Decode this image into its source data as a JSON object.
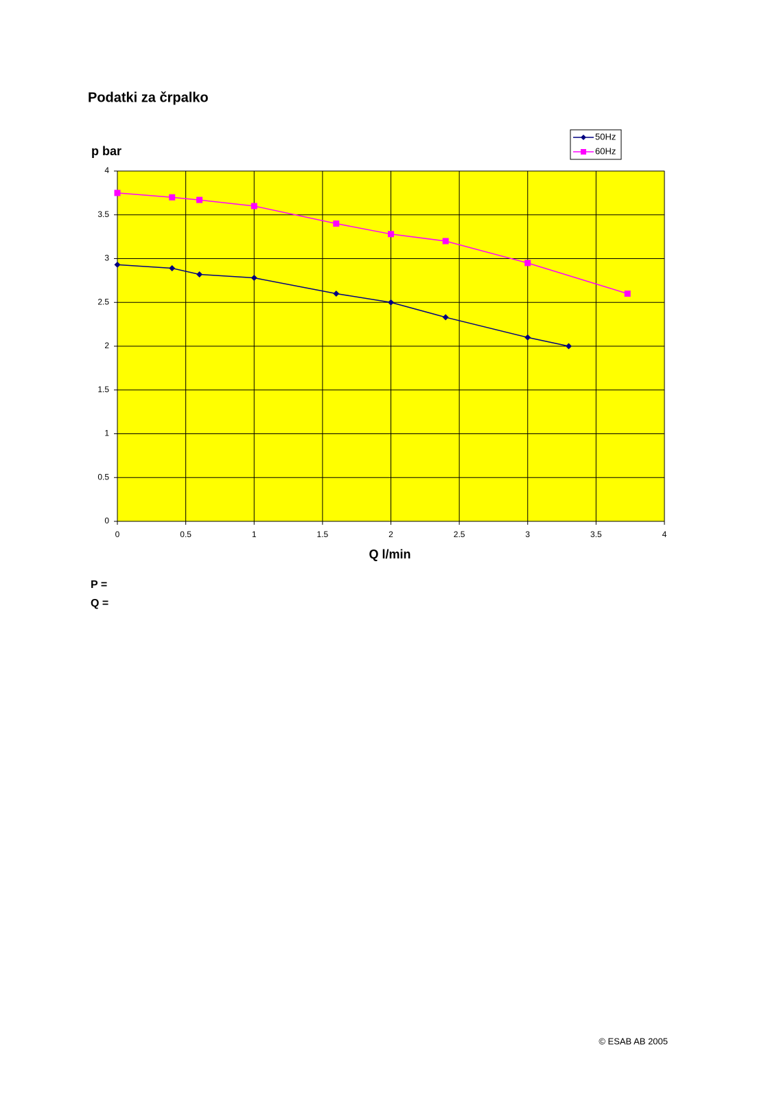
{
  "title": "Podatki za črpalko",
  "fields": [
    "P =",
    "Q ="
  ],
  "footer": "© ESAB AB 2005",
  "chart_data": {
    "type": "line",
    "ylabel": "p bar",
    "xlabel": "Q l/min",
    "xlim": [
      0,
      4
    ],
    "xticks": [
      0,
      0.5,
      1,
      1.5,
      2,
      2.5,
      3,
      3.5,
      4
    ],
    "ylim": [
      0,
      4
    ],
    "yticks": [
      0,
      0.5,
      1,
      1.5,
      2,
      2.5,
      3,
      3.5,
      4
    ],
    "grid": true,
    "background": "#ffff00",
    "legend": "upper right",
    "series": [
      {
        "name": "50Hz",
        "color": "#000080",
        "marker": "diamond",
        "x": [
          0,
          0.4,
          0.6,
          1,
          1.6,
          2,
          2.4,
          3,
          3.3
        ],
        "values": [
          2.93,
          2.89,
          2.82,
          2.78,
          2.6,
          2.5,
          2.33,
          2.1,
          2.0
        ]
      },
      {
        "name": "60Hz",
        "color": "#ff00ff",
        "marker": "square",
        "x": [
          0,
          0.4,
          0.6,
          1,
          1.6,
          2,
          2.4,
          3,
          3.73
        ],
        "values": [
          3.75,
          3.7,
          3.67,
          3.6,
          3.4,
          3.28,
          3.2,
          2.95,
          2.6
        ]
      }
    ]
  }
}
